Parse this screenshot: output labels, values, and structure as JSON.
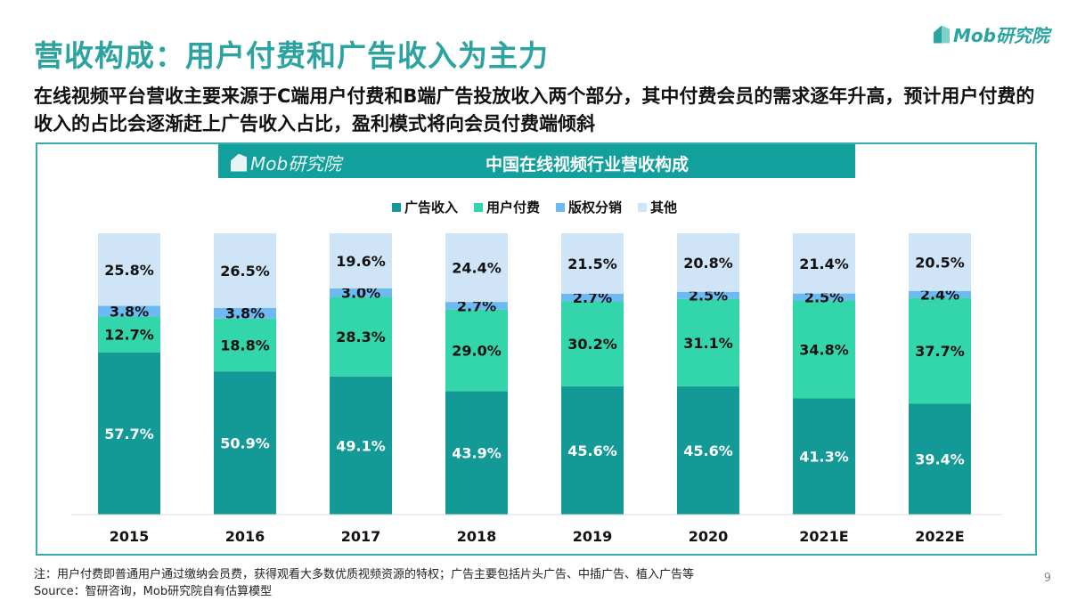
{
  "title": "营收构成：用户付费和广告收入为主力",
  "logo": "Mob研究院",
  "subtitle": "在线视频平台营收主要来源于C端用户付费和B端广告投放收入两个部分，其中付费会员的需求逐年升高，预计用户付费的收入的占比会逐渐赶上广告收入占比，盈利模式将向会员付费端倾斜",
  "note": "注：用户付费即普通用户通过缴纳会员费，获得观看大多数优质视频资源的特权；广告主要包括片头广告、中插广告、植入广告等",
  "source": "Source：智研咨询，Mob研究院自有估算模型",
  "page_number": "9",
  "chart_data": {
    "type": "bar",
    "stacked": true,
    "title": "中国在线视频行业营收构成",
    "categories": [
      "2015",
      "2016",
      "2017",
      "2018",
      "2019",
      "2020",
      "2021E",
      "2022E"
    ],
    "ylim": [
      0,
      100
    ],
    "legend_position": "top",
    "series": [
      {
        "name": "广告收入",
        "color": "#139a96",
        "values": [
          57.7,
          50.9,
          49.1,
          43.9,
          45.6,
          45.6,
          41.3,
          39.4
        ]
      },
      {
        "name": "用户付费",
        "color": "#33d6aa",
        "values": [
          12.7,
          18.8,
          28.3,
          29.0,
          30.2,
          31.1,
          34.8,
          37.7
        ]
      },
      {
        "name": "版权分销",
        "color": "#6db9f2",
        "values": [
          3.8,
          3.8,
          3.0,
          2.7,
          2.7,
          2.5,
          2.5,
          2.4
        ]
      },
      {
        "name": "其他",
        "color": "#cfe5f7",
        "values": [
          25.8,
          26.5,
          19.6,
          24.4,
          21.5,
          20.8,
          21.4,
          20.5
        ]
      }
    ]
  }
}
